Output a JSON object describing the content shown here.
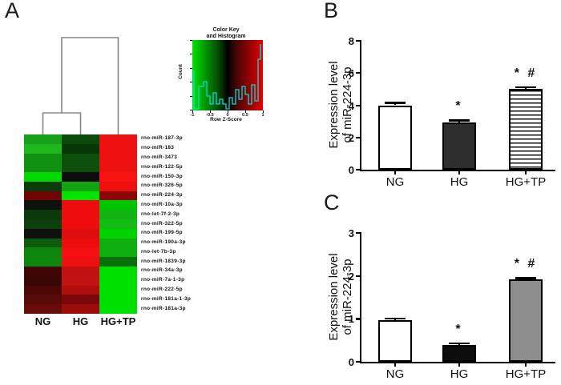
{
  "panels": {
    "a": {
      "label": "A",
      "heatmap": {
        "columns": [
          "NG",
          "HG",
          "HG+TP"
        ],
        "rows": [
          {
            "label": "rno-miR-187-3p",
            "colors": [
              "#18a018",
              "#0b4a0b",
              "#ee1111"
            ]
          },
          {
            "label": "rno-miR-183",
            "colors": [
              "#1db81d",
              "#073607",
              "#ee1111"
            ]
          },
          {
            "label": "rno-miR-3473",
            "colors": [
              "#129012",
              "#0c4f0c",
              "#ee1111"
            ]
          },
          {
            "label": "rno-miR-122-5p",
            "colors": [
              "#119111",
              "#0d4f0d",
              "#ee1111"
            ]
          },
          {
            "label": "rno-miR-150-3p",
            "colors": [
              "#00d800",
              "#0c0c0c",
              "#f81212"
            ]
          },
          {
            "label": "rno-miR-326-5p",
            "colors": [
              "#0b3a0b",
              "#12a412",
              "#ee0f0f"
            ]
          },
          {
            "label": "rno-miR-224-3p",
            "colors": [
              "#700404",
              "#00e400",
              "#8a0505"
            ]
          },
          {
            "label": "rno-miR-10a-3p",
            "colors": [
              "#0d120d",
              "#ee0d0d",
              "#00c400"
            ]
          },
          {
            "label": "rno-let-7f-2-3p",
            "colors": [
              "#0c380c",
              "#ee0d0d",
              "#12b412"
            ]
          },
          {
            "label": "rno-miR-322-5p",
            "colors": [
              "#0b400b",
              "#ee0d0d",
              "#15bb15"
            ]
          },
          {
            "label": "rno-miR-199-5p",
            "colors": [
              "#0d100d",
              "#e00d0d",
              "#00d300"
            ]
          },
          {
            "label": "rno-miR-190a-3p",
            "colors": [
              "#0d5c0d",
              "#ee0d0d",
              "#0fae0f"
            ]
          },
          {
            "label": "rno-let-7b-3p",
            "colors": [
              "#0e860e",
              "#f51111",
              "#0fae0f"
            ]
          },
          {
            "label": "rno-miR-1839-3p",
            "colors": [
              "#0d860d",
              "#ee1111",
              "#0a6e0a"
            ]
          },
          {
            "label": "rno-miR-34a-3p",
            "colors": [
              "#400606",
              "#c01010",
              "#00e000"
            ]
          },
          {
            "label": "rno-miR-7a-1-3p",
            "colors": [
              "#3a0505",
              "#c21212",
              "#00e000"
            ]
          },
          {
            "label": "rno-miR-222-5p",
            "colors": [
              "#4d0707",
              "#b00d0d",
              "#00e000"
            ]
          },
          {
            "label": "rno-miR-181a-1-3p",
            "colors": [
              "#5a0909",
              "#7a0808",
              "#00e000"
            ]
          },
          {
            "label": "rno-miR-181a-3p",
            "colors": [
              "#680b0b",
              "#9c0c0c",
              "#00e000"
            ]
          }
        ]
      },
      "color_key": {
        "title_line1": "Color Key",
        "title_line2": "and Histogram",
        "ylabel": "Count",
        "xlabel": "Row Z-Score",
        "x_ticks": [
          "-1",
          "-0.5",
          "0",
          "0.5",
          "1"
        ],
        "gradient": [
          "#00e400",
          "#000000",
          "#e40000"
        ],
        "histogram_color": "#00dede"
      }
    },
    "b": {
      "label": "B"
    },
    "c": {
      "label": "C"
    }
  },
  "chart_data": [
    {
      "id": "b",
      "type": "bar",
      "panel_label": "B",
      "ylabel_line1": "Expression level",
      "ylabel_line2": "of miR-224-3p",
      "categories": [
        "NG",
        "HG",
        "HG+TP"
      ],
      "values": [
        4.0,
        2.95,
        5.0
      ],
      "errors": [
        0.15,
        0.12,
        0.12
      ],
      "ylim": [
        0,
        8
      ],
      "yticks": [
        0,
        2,
        4,
        6,
        8
      ],
      "annotations": [
        "",
        "*",
        "* #"
      ],
      "bar_styles": [
        "white",
        "dark",
        "hstripes"
      ],
      "grid": false,
      "legend": false
    },
    {
      "id": "c",
      "type": "bar",
      "panel_label": "C",
      "ylabel_line1": "Expression level",
      "ylabel_line2": "of miR-224-3p",
      "categories": [
        "NG",
        "HG",
        "HG+TP"
      ],
      "values": [
        0.97,
        0.4,
        1.92
      ],
      "errors": [
        0.04,
        0.03,
        0.03
      ],
      "ylim": [
        0,
        3
      ],
      "yticks": [
        0,
        1,
        2,
        3
      ],
      "annotations": [
        "",
        "*",
        "* #"
      ],
      "bar_styles": [
        "white",
        "black",
        "gray"
      ],
      "grid": false,
      "legend": false
    }
  ]
}
